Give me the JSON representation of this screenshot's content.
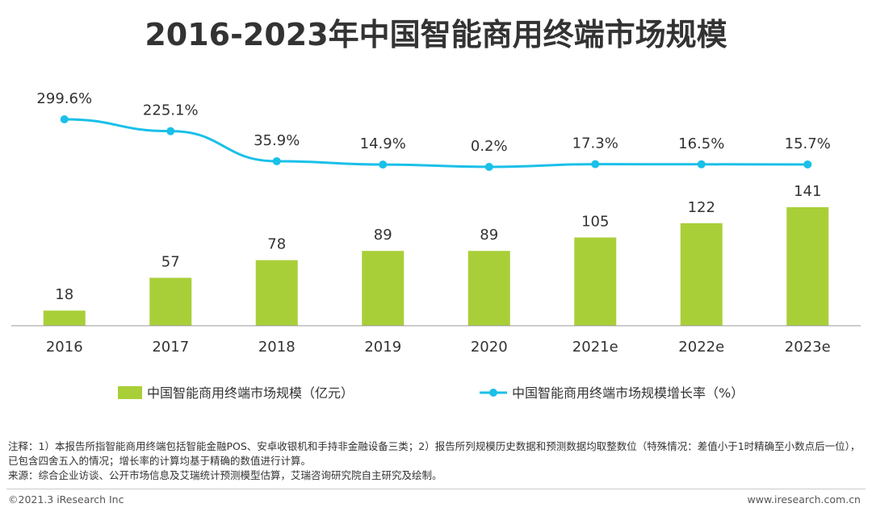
{
  "chart_data": {
    "type": "bar",
    "title": "2016-2023年中国智能商用终端市场规模",
    "categories": [
      "2016",
      "2017",
      "2018",
      "2019",
      "2020",
      "2021e",
      "2022e",
      "2023e"
    ],
    "series": [
      {
        "name": "中国智能商用终端市场规模（亿元）",
        "type": "bar",
        "color": "#a9cf38",
        "values": [
          18,
          57,
          78,
          89,
          89,
          105,
          122,
          141
        ],
        "labels": [
          "18",
          "57",
          "78",
          "89",
          "89",
          "105",
          "122",
          "141"
        ]
      },
      {
        "name": "中国智能商用终端市场规模增长率（%）",
        "type": "line",
        "color": "#1ac0e8",
        "values": [
          299.6,
          225.1,
          35.9,
          14.9,
          0.2,
          17.3,
          16.5,
          15.7
        ],
        "labels": [
          "299.6%",
          "225.1%",
          "35.9%",
          "14.9%",
          "0.2%",
          "17.3%",
          "16.5%",
          "15.7%"
        ]
      }
    ],
    "legend_position": "bottom"
  },
  "notes": {
    "note": "注释：1）本报告所指智能商用终端包括智能金融POS、安卓收银机和手持非金融设备三类；2）报告所列规模历史数据和预测数据均取整数位（特殊情况：差值小于1时精确至小数点后一位），已包含四舍五入的情况；增长率的计算均基于精确的数值进行计算。",
    "source": "来源：综合企业访谈、公开市场信息及艾瑞统计预测模型估算，艾瑞咨询研究院自主研究及绘制。"
  },
  "footer": {
    "copyright": "©2021.3 iResearch Inc",
    "website": "www.iresearch.com.cn"
  }
}
